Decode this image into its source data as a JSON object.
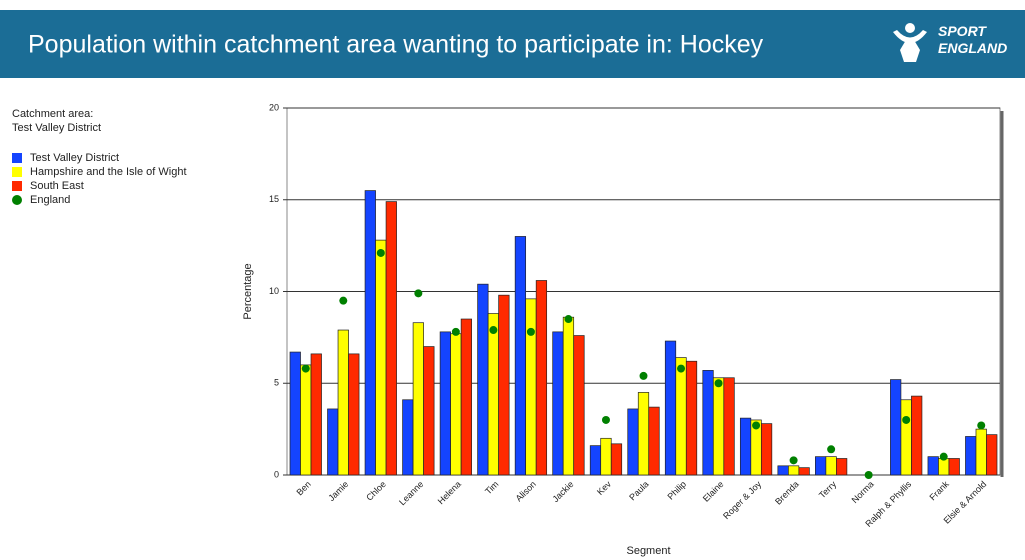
{
  "header": {
    "title": "Population within catchment area wanting to participate in: Hockey",
    "logo": [
      "SPORT",
      "ENGLAND"
    ]
  },
  "catchment": {
    "label": "Catchment area:",
    "value": "Test Valley District"
  },
  "chart_data": {
    "type": "bar",
    "xlabel": "Segment",
    "ylabel": "Percentage",
    "categories": [
      "Ben",
      "Jamie",
      "Chloe",
      "Leanne",
      "Helena",
      "Tim",
      "Alison",
      "Jackie",
      "Kev",
      "Paula",
      "Philip",
      "Elaine",
      "Roger & Joy",
      "Brenda",
      "Terry",
      "Norma",
      "Ralph & Phyllis",
      "Frank",
      "Elsie & Arnold"
    ],
    "series": [
      {
        "name": "Test Valley District",
        "color": "#1444ff",
        "values": [
          6.7,
          3.6,
          15.5,
          4.1,
          7.8,
          10.4,
          13.0,
          7.8,
          1.6,
          3.6,
          7.3,
          5.7,
          3.1,
          0.5,
          1.0,
          0,
          5.2,
          1.0,
          2.1
        ]
      },
      {
        "name": "Hampshire and the Isle of Wight",
        "color": "#ffff00",
        "values": [
          6.0,
          7.9,
          12.8,
          8.3,
          7.7,
          8.8,
          9.6,
          8.6,
          2.0,
          4.5,
          6.4,
          5.3,
          3.0,
          0.5,
          1.0,
          0,
          4.1,
          0.9,
          2.5
        ]
      },
      {
        "name": "South East",
        "color": "#ff2a00",
        "values": [
          6.6,
          6.6,
          14.9,
          7.0,
          8.5,
          9.8,
          10.6,
          7.6,
          1.7,
          3.7,
          6.2,
          5.3,
          2.8,
          0.4,
          0.9,
          0,
          4.3,
          0.9,
          2.2
        ]
      },
      {
        "name": "England",
        "color": "#008000",
        "style": "dot",
        "values": [
          5.8,
          9.5,
          12.1,
          9.9,
          7.8,
          7.9,
          7.8,
          8.5,
          3.0,
          5.4,
          5.8,
          5.0,
          2.7,
          0.8,
          1.4,
          0,
          3.0,
          1.0,
          2.7
        ]
      }
    ],
    "ylim": [
      0,
      20
    ],
    "yticks": [
      0,
      5,
      10,
      15,
      20
    ],
    "grid": true
  }
}
